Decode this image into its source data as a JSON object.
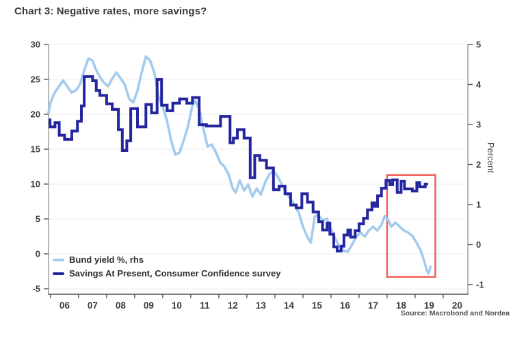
{
  "title": "Chart 3: Negative rates, more savings?",
  "source": "Source: Macrobond and Nordea",
  "colors": {
    "bund_line": "#a3cbee",
    "savings_line": "#23269e",
    "highlight_box": "#f2635e",
    "gridline": "#ececec",
    "spine": "#9a9a9a",
    "bottom_spine": "#555555",
    "tick": "#555555"
  },
  "chart_data": {
    "type": "line",
    "title": "Chart 3: Negative rates, more savings?",
    "x_axis": {
      "domain": [
        2005.93,
        2020.88
      ],
      "boundary_years": [
        2006,
        2007,
        2008,
        2009,
        2010,
        2011,
        2012,
        2013,
        2014,
        2015,
        2016,
        2017,
        2018,
        2019,
        2020
      ],
      "tick_labels": [
        "06",
        "07",
        "08",
        "09",
        "10",
        "11",
        "12",
        "13",
        "14",
        "15",
        "16",
        "17",
        "18",
        "19",
        "20"
      ]
    },
    "y_left": {
      "min": -5,
      "max": 30,
      "ticks": [
        30,
        25,
        20,
        15,
        10,
        5,
        0,
        -5
      ],
      "label": ""
    },
    "y_right": {
      "min": -1,
      "max": 5,
      "ticks": [
        5,
        4,
        3,
        2,
        1,
        0,
        -1
      ],
      "label": "Percent"
    },
    "grid": "horizontal-at-left-ticks",
    "legend_position": "bottom-left-inside",
    "series": [
      {
        "name": "Bund yield %, rhs",
        "axis": "right",
        "style": "polyline",
        "width": 3.6,
        "points": [
          [
            2005.93,
            3.3
          ],
          [
            2006.0,
            3.55
          ],
          [
            2006.15,
            3.8
          ],
          [
            2006.3,
            3.95
          ],
          [
            2006.45,
            4.1
          ],
          [
            2006.6,
            3.95
          ],
          [
            2006.75,
            3.8
          ],
          [
            2006.9,
            3.85
          ],
          [
            2007.05,
            4.0
          ],
          [
            2007.2,
            4.35
          ],
          [
            2007.35,
            4.65
          ],
          [
            2007.5,
            4.6
          ],
          [
            2007.6,
            4.4
          ],
          [
            2007.75,
            4.2
          ],
          [
            2007.9,
            4.05
          ],
          [
            2008.05,
            3.95
          ],
          [
            2008.2,
            4.15
          ],
          [
            2008.35,
            4.3
          ],
          [
            2008.5,
            4.15
          ],
          [
            2008.65,
            4.0
          ],
          [
            2008.8,
            3.65
          ],
          [
            2008.95,
            3.55
          ],
          [
            2009.1,
            3.85
          ],
          [
            2009.25,
            4.3
          ],
          [
            2009.4,
            4.7
          ],
          [
            2009.55,
            4.6
          ],
          [
            2009.7,
            4.3
          ],
          [
            2009.85,
            3.7
          ],
          [
            2010.0,
            3.45
          ],
          [
            2010.15,
            3.1
          ],
          [
            2010.3,
            2.6
          ],
          [
            2010.45,
            2.25
          ],
          [
            2010.6,
            2.3
          ],
          [
            2010.75,
            2.6
          ],
          [
            2010.9,
            2.95
          ],
          [
            2011.05,
            3.45
          ],
          [
            2011.15,
            3.6
          ],
          [
            2011.3,
            3.4
          ],
          [
            2011.45,
            2.9
          ],
          [
            2011.6,
            2.45
          ],
          [
            2011.75,
            2.5
          ],
          [
            2011.9,
            2.3
          ],
          [
            2012.05,
            2.05
          ],
          [
            2012.2,
            1.95
          ],
          [
            2012.35,
            1.75
          ],
          [
            2012.5,
            1.4
          ],
          [
            2012.6,
            1.3
          ],
          [
            2012.75,
            1.6
          ],
          [
            2012.9,
            1.35
          ],
          [
            2013.05,
            1.5
          ],
          [
            2013.2,
            1.2
          ],
          [
            2013.35,
            1.4
          ],
          [
            2013.5,
            1.25
          ],
          [
            2013.65,
            1.55
          ],
          [
            2013.8,
            1.75
          ],
          [
            2013.95,
            1.85
          ],
          [
            2014.1,
            1.7
          ],
          [
            2014.25,
            1.5
          ],
          [
            2014.4,
            1.3
          ],
          [
            2014.55,
            1.15
          ],
          [
            2014.7,
            1.0
          ],
          [
            2014.85,
            0.8
          ],
          [
            2015.0,
            0.45
          ],
          [
            2015.15,
            0.2
          ],
          [
            2015.28,
            0.05
          ],
          [
            2015.42,
            0.7
          ],
          [
            2015.55,
            0.75
          ],
          [
            2015.7,
            0.6
          ],
          [
            2015.85,
            0.65
          ],
          [
            2016.0,
            0.4
          ],
          [
            2016.15,
            0.15
          ],
          [
            2016.3,
            -0.05
          ],
          [
            2016.45,
            -0.15
          ],
          [
            2016.6,
            -0.18
          ],
          [
            2016.75,
            0.0
          ],
          [
            2016.9,
            0.2
          ],
          [
            2017.05,
            0.3
          ],
          [
            2017.2,
            0.2
          ],
          [
            2017.35,
            0.35
          ],
          [
            2017.5,
            0.45
          ],
          [
            2017.65,
            0.35
          ],
          [
            2017.8,
            0.5
          ],
          [
            2017.92,
            0.72
          ],
          [
            2018.05,
            0.6
          ],
          [
            2018.15,
            0.45
          ],
          [
            2018.3,
            0.55
          ],
          [
            2018.45,
            0.45
          ],
          [
            2018.6,
            0.35
          ],
          [
            2018.75,
            0.3
          ],
          [
            2018.9,
            0.22
          ],
          [
            2019.05,
            0.05
          ],
          [
            2019.2,
            -0.15
          ],
          [
            2019.32,
            -0.4
          ],
          [
            2019.42,
            -0.65
          ],
          [
            2019.48,
            -0.72
          ],
          [
            2019.55,
            -0.55
          ]
        ]
      },
      {
        "name": "Savings At Present, Consumer Confidence survey",
        "axis": "left",
        "style": "step",
        "width": 4,
        "segments": [
          [
            2005.93,
            2005.98,
            19.2
          ],
          [
            2005.98,
            2006.16,
            18.2
          ],
          [
            2006.16,
            2006.31,
            18.8
          ],
          [
            2006.31,
            2006.5,
            17.0
          ],
          [
            2006.5,
            2006.76,
            16.4
          ],
          [
            2006.76,
            2006.96,
            17.6
          ],
          [
            2006.96,
            2007.1,
            19.0
          ],
          [
            2007.1,
            2007.2,
            21.2
          ],
          [
            2007.2,
            2007.5,
            25.4
          ],
          [
            2007.5,
            2007.63,
            24.8
          ],
          [
            2007.63,
            2007.76,
            23.4
          ],
          [
            2007.76,
            2008.0,
            22.7
          ],
          [
            2008.0,
            2008.2,
            21.5
          ],
          [
            2008.2,
            2008.42,
            20.7
          ],
          [
            2008.42,
            2008.56,
            17.8
          ],
          [
            2008.56,
            2008.72,
            14.8
          ],
          [
            2008.72,
            2008.86,
            16.2
          ],
          [
            2008.86,
            2009.1,
            20.8
          ],
          [
            2009.1,
            2009.4,
            18.2
          ],
          [
            2009.4,
            2009.6,
            21.4
          ],
          [
            2009.6,
            2009.8,
            20.2
          ],
          [
            2009.8,
            2009.96,
            25.0
          ],
          [
            2009.96,
            2010.16,
            21.3
          ],
          [
            2010.16,
            2010.36,
            20.5
          ],
          [
            2010.36,
            2010.6,
            21.6
          ],
          [
            2010.6,
            2010.86,
            22.2
          ],
          [
            2010.86,
            2011.06,
            21.6
          ],
          [
            2011.06,
            2011.3,
            22.4
          ],
          [
            2011.3,
            2011.56,
            18.5
          ],
          [
            2011.56,
            2012.06,
            18.3
          ],
          [
            2012.06,
            2012.4,
            19.7
          ],
          [
            2012.4,
            2012.52,
            15.9
          ],
          [
            2012.52,
            2012.66,
            16.6
          ],
          [
            2012.66,
            2012.9,
            17.8
          ],
          [
            2012.9,
            2013.12,
            16.6
          ],
          [
            2013.12,
            2013.28,
            10.9
          ],
          [
            2013.28,
            2013.46,
            14.1
          ],
          [
            2013.46,
            2013.7,
            13.4
          ],
          [
            2013.7,
            2013.95,
            12.3
          ],
          [
            2013.95,
            2014.15,
            9.2
          ],
          [
            2014.15,
            2014.36,
            9.7
          ],
          [
            2014.36,
            2014.56,
            8.6
          ],
          [
            2014.56,
            2014.76,
            7.0
          ],
          [
            2014.76,
            2014.96,
            6.6
          ],
          [
            2014.96,
            2015.16,
            8.6
          ],
          [
            2015.16,
            2015.36,
            7.4
          ],
          [
            2015.36,
            2015.56,
            6.0
          ],
          [
            2015.56,
            2015.7,
            4.6
          ],
          [
            2015.7,
            2015.86,
            3.4
          ],
          [
            2015.86,
            2015.96,
            4.4
          ],
          [
            2015.96,
            2016.1,
            2.8
          ],
          [
            2016.1,
            2016.22,
            1.0
          ],
          [
            2016.22,
            2016.36,
            0.4
          ],
          [
            2016.36,
            2016.46,
            1.1
          ],
          [
            2016.46,
            2016.6,
            2.7
          ],
          [
            2016.6,
            2016.7,
            3.4
          ],
          [
            2016.7,
            2016.86,
            2.4
          ],
          [
            2016.86,
            2017.0,
            3.3
          ],
          [
            2017.0,
            2017.16,
            4.3
          ],
          [
            2017.16,
            2017.3,
            5.1
          ],
          [
            2017.3,
            2017.46,
            6.3
          ],
          [
            2017.46,
            2017.56,
            7.3
          ],
          [
            2017.56,
            2017.66,
            6.8
          ],
          [
            2017.66,
            2017.8,
            8.3
          ],
          [
            2017.8,
            2017.96,
            9.4
          ],
          [
            2017.96,
            2018.1,
            10.5
          ],
          [
            2018.1,
            2018.2,
            9.9
          ],
          [
            2018.2,
            2018.36,
            10.6
          ],
          [
            2018.36,
            2018.5,
            8.8
          ],
          [
            2018.5,
            2018.62,
            10.4
          ],
          [
            2018.62,
            2018.9,
            9.3
          ],
          [
            2018.9,
            2019.06,
            9.0
          ],
          [
            2019.06,
            2019.16,
            10.2
          ],
          [
            2019.16,
            2019.36,
            9.6
          ],
          [
            2019.36,
            2019.46,
            10.0
          ]
        ]
      }
    ],
    "highlight_box": {
      "axis": "left",
      "t0": 2018.0,
      "t1": 2019.72,
      "v_top": 11.3,
      "v_bottom": -3.3
    }
  },
  "legend": {
    "items": [
      {
        "label": "Bund yield %, rhs"
      },
      {
        "label": "Savings At Present, Consumer Confidence survey"
      }
    ]
  },
  "y_right_axis_label": "Percent"
}
